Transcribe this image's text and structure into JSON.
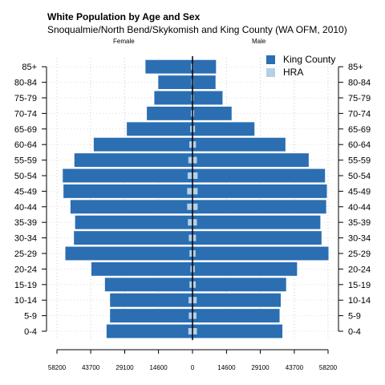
{
  "chart_data": {
    "type": "bar",
    "title": "White Population by Age and Sex",
    "subtitle": "Snoqualmie/North Bend/Skykomish and King County (WA OFM, 2010)",
    "left_label": "Female",
    "right_label": "Male",
    "categories": [
      "0-4",
      "5-9",
      "10-14",
      "15-19",
      "20-24",
      "25-29",
      "30-34",
      "35-39",
      "40-44",
      "45-49",
      "50-54",
      "55-59",
      "60-64",
      "65-69",
      "70-74",
      "75-79",
      "80-84",
      "85+"
    ],
    "series": [
      {
        "name": "King County",
        "color": "#2b6eb2",
        "female": [
          37000,
          35500,
          35500,
          37700,
          43500,
          54700,
          51000,
          50500,
          52500,
          55500,
          55800,
          50800,
          42500,
          28300,
          19700,
          16500,
          14800,
          20300
        ],
        "male": [
          38700,
          37500,
          38000,
          40300,
          45000,
          58500,
          55500,
          55000,
          57500,
          57800,
          57000,
          50000,
          40000,
          26700,
          16900,
          13000,
          10000,
          10200
        ]
      },
      {
        "name": "HRA",
        "color": "#b3d0e6",
        "female": [
          1800,
          1600,
          1700,
          1300,
          900,
          1300,
          1600,
          2000,
          2300,
          2300,
          2100,
          1800,
          1400,
          1000,
          700,
          600,
          500,
          700
        ],
        "male": [
          1900,
          1700,
          1800,
          1400,
          1000,
          1300,
          1500,
          1900,
          2200,
          2200,
          2200,
          1900,
          1500,
          1100,
          700,
          500,
          400,
          400
        ]
      }
    ],
    "x_ticks": [
      -58200,
      -43700,
      -29100,
      -14600,
      0,
      14600,
      29100,
      43700,
      58200
    ],
    "x_tick_labels": [
      "58200",
      "43700",
      "29100",
      "14600",
      "0",
      "14600",
      "29100",
      "43700",
      "58200"
    ],
    "xlim": [
      -58200,
      58200
    ],
    "grid": true,
    "legend_position": "top-right"
  }
}
